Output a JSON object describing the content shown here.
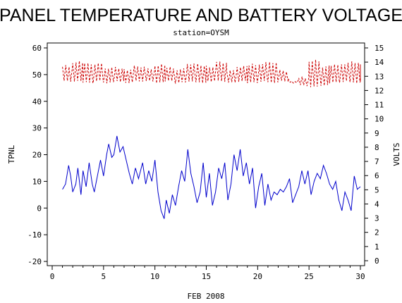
{
  "chart_data": {
    "type": "line",
    "title": "PANEL TEMPERATURE AND BATTERY VOLTAGE",
    "subtitle": "station=OYSM",
    "xlabel": "FEB 2008",
    "ylabel_left": "TPNL",
    "ylabel_right": "VOLTS",
    "xlim": [
      0,
      30
    ],
    "ylim_left": [
      -20,
      60
    ],
    "ylim_right": [
      0,
      15
    ],
    "x_ticks": [
      "0",
      "5",
      "10",
      "15",
      "20",
      "25",
      "30"
    ],
    "y_left_ticks": [
      "-20",
      "-10",
      "0",
      "10",
      "20",
      "30",
      "40",
      "50",
      "60"
    ],
    "y_right_ticks": [
      "0",
      "1",
      "2",
      "3",
      "4",
      "5",
      "6",
      "7",
      "8",
      "9",
      "10",
      "11",
      "12",
      "13",
      "14",
      "15"
    ],
    "grid": false,
    "series": [
      {
        "name": "TPNL",
        "axis": "left",
        "color": "#0000cc",
        "style": "solid",
        "x": [
          1.0,
          1.3,
          1.6,
          1.8,
          2.0,
          2.3,
          2.5,
          2.8,
          3.0,
          3.3,
          3.6,
          3.9,
          4.1,
          4.4,
          4.7,
          5.0,
          5.3,
          5.5,
          5.8,
          6.0,
          6.3,
          6.6,
          6.9,
          7.2,
          7.5,
          7.8,
          8.1,
          8.4,
          8.8,
          9.1,
          9.4,
          9.7,
          10.0,
          10.3,
          10.6,
          10.9,
          11.1,
          11.4,
          11.7,
          12.0,
          12.3,
          12.6,
          12.9,
          13.2,
          13.5,
          13.8,
          14.1,
          14.4,
          14.7,
          15.0,
          15.3,
          15.6,
          15.9,
          16.2,
          16.5,
          16.8,
          17.1,
          17.4,
          17.7,
          18.0,
          18.3,
          18.6,
          18.9,
          19.2,
          19.5,
          19.8,
          20.1,
          20.4,
          20.7,
          21.0,
          21.3,
          21.6,
          21.9,
          22.2,
          22.5,
          22.8,
          23.1,
          23.4,
          23.7,
          24.0,
          24.3,
          24.6,
          24.9,
          25.2,
          25.5,
          25.8,
          26.1,
          26.4,
          26.7,
          27.0,
          27.3,
          27.6,
          27.9,
          28.2,
          28.5,
          28.8,
          29.1,
          29.4,
          29.7,
          30.0
        ],
        "values": [
          7,
          9,
          16,
          12,
          6,
          9,
          15,
          5,
          14,
          8,
          17,
          9,
          6,
          12,
          18,
          12,
          20,
          24,
          19,
          20,
          27,
          21,
          23,
          18,
          13,
          9,
          15,
          11,
          17,
          9,
          14,
          10,
          18,
          6,
          -1,
          -4,
          3,
          -2,
          5,
          1,
          8,
          14,
          10,
          22,
          13,
          8,
          2,
          6,
          17,
          4,
          13,
          1,
          6,
          15,
          11,
          17,
          3,
          9,
          20,
          14,
          22,
          12,
          17,
          9,
          15,
          0,
          8,
          13,
          1,
          9,
          3,
          6,
          5,
          7,
          6,
          8,
          11,
          2,
          5,
          8,
          14,
          9,
          14,
          5,
          10,
          13,
          11,
          16,
          13,
          9,
          7,
          10,
          3,
          -1,
          6,
          3,
          -1,
          12,
          7,
          8
        ]
      },
      {
        "name": "VOLTS",
        "axis": "right",
        "color": "#cc0000",
        "style": "dashed",
        "period": 0.32,
        "low_values": [
          12.6,
          12.6,
          12.5,
          12.6,
          12.5,
          12.6,
          12.5,
          12.6,
          12.6,
          12.5,
          12.6,
          12.5,
          12.6,
          12.5,
          12.6,
          12.6,
          12.5,
          12.6,
          12.5,
          12.6,
          12.5,
          12.6,
          12.5,
          12.3,
          12.2,
          12.3,
          12.5,
          12.6,
          12.5,
          12.6
        ],
        "high_values": [
          13.8,
          14.1,
          14.0,
          14.0,
          13.7,
          13.7,
          13.6,
          13.8,
          13.6,
          13.9,
          13.7,
          13.6,
          14.0,
          13.9,
          13.8,
          14.1,
          13.5,
          13.8,
          13.9,
          14.0,
          14.1,
          13.5,
          12.8,
          13.0,
          14.2,
          13.8,
          13.9,
          14.0,
          14.1,
          13.9
        ]
      }
    ]
  }
}
